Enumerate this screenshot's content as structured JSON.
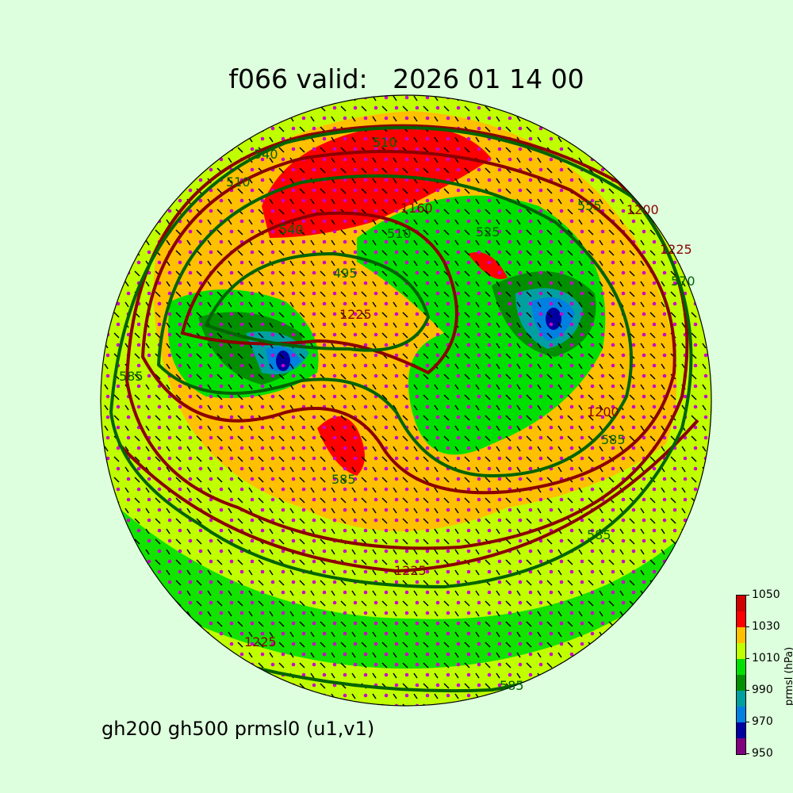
{
  "title": "f066 valid:   2026 01 14 00",
  "subtitle": "gh200 gh500 prmsl0 (u1,v1)",
  "colorbar": {
    "label": "prmsl (hPa)",
    "ticks": [
      "950",
      "970",
      "990",
      "1010",
      "1030",
      "1050"
    ],
    "bins": [
      950,
      960,
      970,
      980,
      990,
      1000,
      1010,
      1020,
      1030,
      1040,
      1050
    ],
    "colors": [
      "#800080",
      "#0000a0",
      "#0080e0",
      "#00a0a0",
      "#009000",
      "#00e000",
      "#c0ff00",
      "#ffc000",
      "#ff0000",
      "#d00000"
    ]
  },
  "contour_colors": {
    "gh200": "#8b0000",
    "gh500": "#006400",
    "wind_dots": "#cc00cc",
    "coastlines": "#000000"
  },
  "contour_labels": {
    "gh500": [
      "510",
      "540",
      "495",
      "525",
      "585",
      "585",
      "585",
      "585",
      "585",
      "510",
      "555",
      "570",
      "510",
      "540"
    ],
    "gh200": [
      "1160",
      "1200",
      "1225",
      "1225",
      "1225",
      "1225",
      "1200"
    ]
  }
}
